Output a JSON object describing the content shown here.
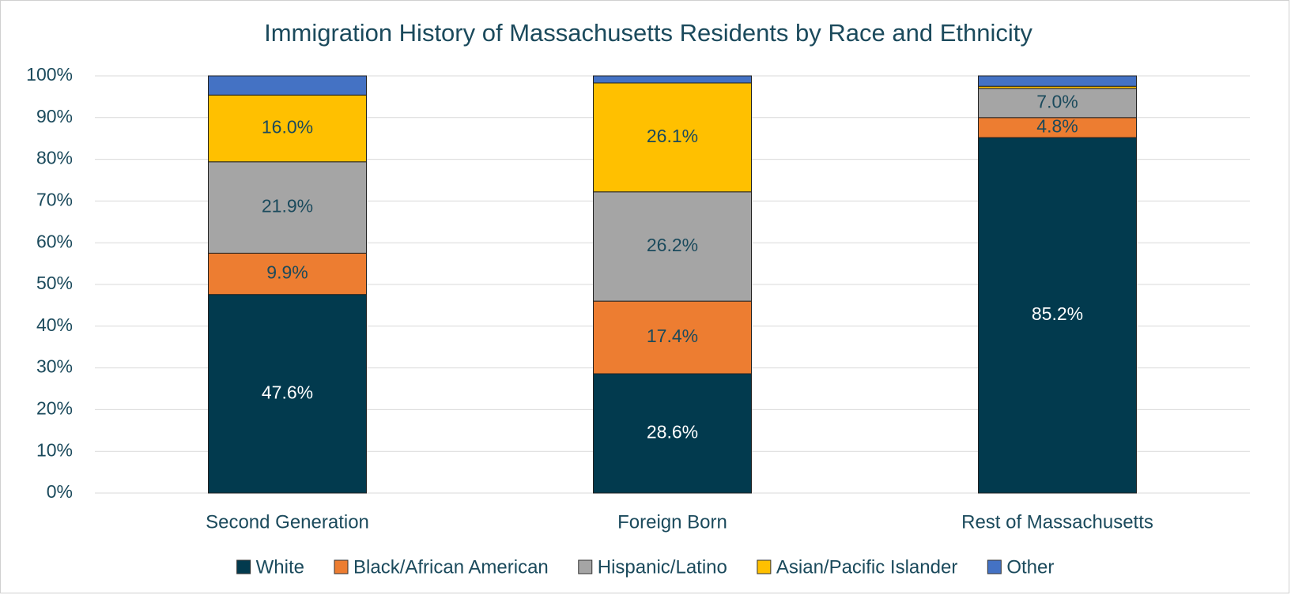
{
  "chart_data": {
    "type": "stacked_bar",
    "title": "Immigration History of Massachusetts Residents by Race and Ethnicity",
    "categories": [
      "Second Generation",
      "Foreign Born",
      "Rest of Massachusetts"
    ],
    "series": [
      {
        "name": "White",
        "color": "#023a4e",
        "values": [
          47.6,
          28.6,
          85.2
        ],
        "value_labels": [
          "47.6%",
          "28.6%",
          "85.2%"
        ]
      },
      {
        "name": "Black/African American",
        "color": "#ed7d31",
        "values": [
          9.9,
          17.4,
          4.8
        ],
        "value_labels": [
          "9.9%",
          "17.4%",
          "4.8%"
        ]
      },
      {
        "name": "Hispanic/Latino",
        "color": "#a5a5a5",
        "values": [
          21.9,
          26.2,
          7.0
        ],
        "value_labels": [
          "21.9%",
          "26.2%",
          "7.0%"
        ]
      },
      {
        "name": "Asian/Pacific Islander",
        "color": "#ffc000",
        "values": [
          16.0,
          26.1,
          0.5
        ],
        "value_labels": [
          "16.0%",
          "26.1%",
          null
        ]
      },
      {
        "name": "Other",
        "color": "#4472c4",
        "values": [
          4.6,
          1.7,
          2.5
        ],
        "value_labels": [
          null,
          null,
          null
        ]
      }
    ],
    "ylim": [
      0,
      100
    ],
    "yticks": [
      {
        "value": 0,
        "label": "0%"
      },
      {
        "value": 10,
        "label": "10%"
      },
      {
        "value": 20,
        "label": "20%"
      },
      {
        "value": 30,
        "label": "30%"
      },
      {
        "value": 40,
        "label": "40%"
      },
      {
        "value": 50,
        "label": "50%"
      },
      {
        "value": 60,
        "label": "60%"
      },
      {
        "value": 70,
        "label": "70%"
      },
      {
        "value": 80,
        "label": "80%"
      },
      {
        "value": 90,
        "label": "90%"
      },
      {
        "value": 100,
        "label": "100%"
      }
    ],
    "grid": true,
    "legend": "bottom"
  }
}
